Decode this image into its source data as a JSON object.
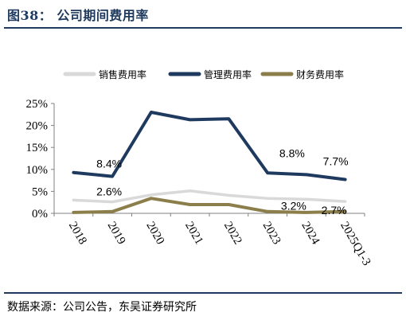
{
  "header": {
    "figure_title": "图38：  公司期间费用率"
  },
  "footer": {
    "source": "数据来源：公司公告，东吴证券研究所"
  },
  "chart_data": {
    "type": "line",
    "title": "",
    "xlabel": "",
    "ylabel": "",
    "categories": [
      "2018",
      "2019",
      "2020",
      "2021",
      "2022",
      "2023",
      "2024",
      "2025Q1-3"
    ],
    "yticks": [
      "0%",
      "5%",
      "10%",
      "15%",
      "20%",
      "25%"
    ],
    "ylim": [
      0,
      25
    ],
    "legend": "top-center",
    "grid": false,
    "series": [
      {
        "name": "销售费用率",
        "color": "#d9d9d9",
        "values": [
          3.0,
          2.6,
          4.2,
          5.1,
          4.1,
          3.4,
          3.2,
          2.7
        ]
      },
      {
        "name": "管理费用率",
        "color": "#1f3a5f",
        "values": [
          9.3,
          8.4,
          23.0,
          21.3,
          21.5,
          9.2,
          8.8,
          7.7
        ]
      },
      {
        "name": "财务费用率",
        "color": "#8c7e4a",
        "values": [
          0.2,
          0.4,
          3.4,
          2.0,
          2.0,
          0.4,
          0.2,
          0.4
        ]
      }
    ],
    "annotations": [
      {
        "text": "8.4%",
        "series": "管理费用率",
        "category": "2019"
      },
      {
        "text": "2.6%",
        "series": "销售费用率",
        "category": "2019"
      },
      {
        "text": "8.8%",
        "series": "管理费用率",
        "category": "2024"
      },
      {
        "text": "7.7%",
        "series": "管理费用率",
        "category": "2025Q1-3"
      },
      {
        "text": "3.2%",
        "series": "销售费用率",
        "category": "2024"
      },
      {
        "text": "2.7%",
        "series": "销售费用率",
        "category": "2025Q1-3"
      }
    ]
  }
}
